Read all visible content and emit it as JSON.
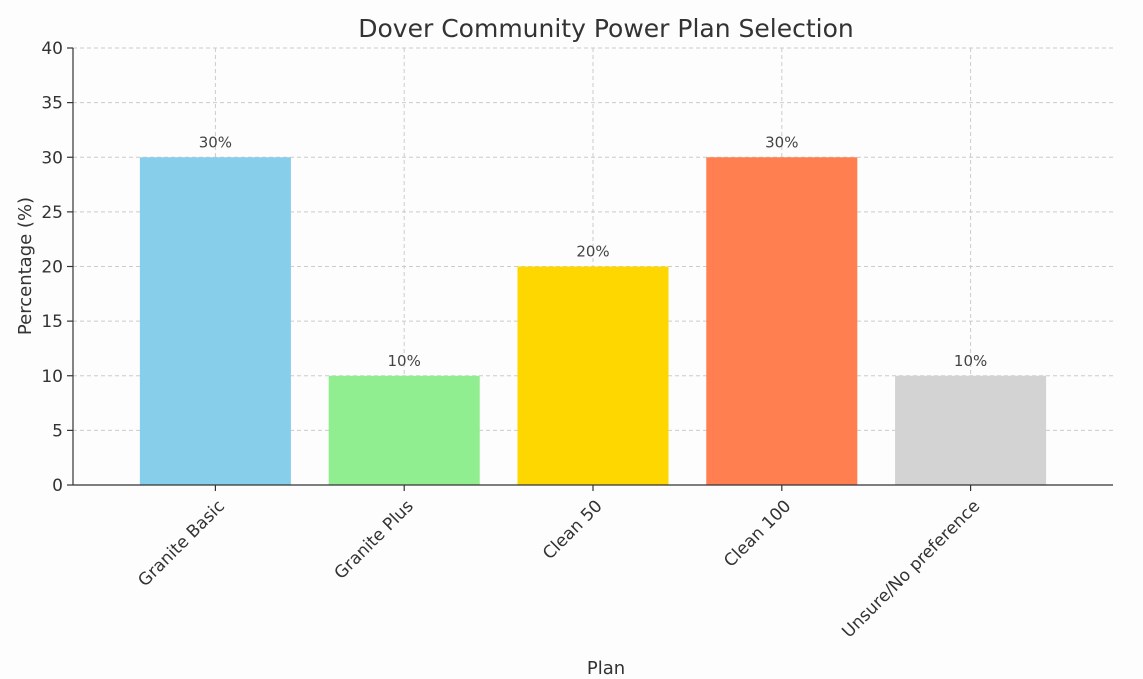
{
  "chart_data": {
    "type": "bar",
    "title": "Dover Community Power Plan Selection",
    "xlabel": "Plan",
    "ylabel": "Percentage (%)",
    "ylim": [
      0,
      40
    ],
    "yticks": [
      0,
      5,
      10,
      15,
      20,
      25,
      30,
      35,
      40
    ],
    "grid": true,
    "categories": [
      "Granite Basic",
      "Granite Plus",
      "Clean 50",
      "Clean 100",
      "Unsure/No preference"
    ],
    "values": [
      30,
      10,
      20,
      30,
      10
    ],
    "data_labels": [
      "30%",
      "10%",
      "20%",
      "30%",
      "10%"
    ],
    "colors": [
      "#87ceeb",
      "#90ee90",
      "#ffd700",
      "#ff7f50",
      "#d3d3d3"
    ]
  }
}
